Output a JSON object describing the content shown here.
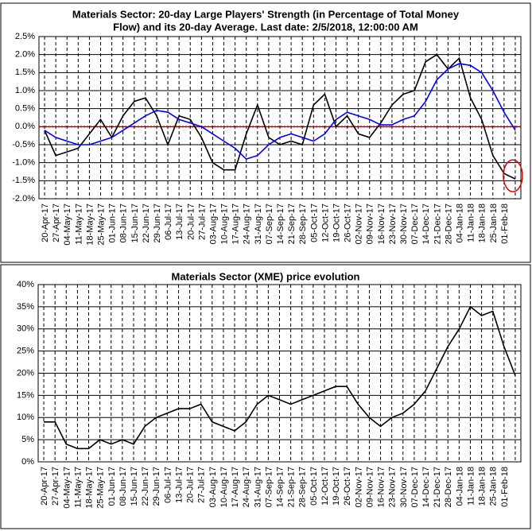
{
  "chart_data": [
    {
      "type": "line",
      "title": [
        "Materials Sector: 20-day Large Players' Strength (in Percentage of Total Money",
        "Flow) and its 20-day Average. Last date: 2/5/2018, 12:00:00 AM"
      ],
      "categories": [
        "20-Apr-17",
        "27-Apr-17",
        "04-May-17",
        "11-May-17",
        "18-May-17",
        "25-May-17",
        "01-Jun-17",
        "08-Jun-17",
        "15-Jun-17",
        "22-Jun-17",
        "29-Jun-17",
        "06-Jul-17",
        "13-Jul-17",
        "20-Jul-17",
        "27-Jul-17",
        "03-Aug-17",
        "10-Aug-17",
        "17-Aug-17",
        "24-Aug-17",
        "31-Aug-17",
        "07-Sep-17",
        "14-Sep-17",
        "21-Sep-17",
        "28-Sep-17",
        "05-Oct-17",
        "12-Oct-17",
        "19-Oct-17",
        "26-Oct-17",
        "02-Nov-17",
        "09-Nov-17",
        "16-Nov-17",
        "23-Nov-17",
        "30-Nov-17",
        "07-Dec-17",
        "14-Dec-17",
        "21-Dec-17",
        "28-Dec-17",
        "04-Jan-18",
        "11-Jan-18",
        "18-Jan-18",
        "25-Jan-18",
        "01-Feb-18",
        null
      ],
      "series": [
        {
          "color": "#000000",
          "values": [
            -0.1,
            -0.8,
            -0.7,
            -0.6,
            -0.2,
            0.2,
            -0.3,
            0.3,
            0.7,
            0.8,
            0.3,
            -0.5,
            0.3,
            0.2,
            -0.3,
            -1.0,
            -1.2,
            -1.2,
            -0.2,
            0.6,
            -0.3,
            -0.5,
            -0.4,
            -0.5,
            0.6,
            0.9,
            0.0,
            0.3,
            -0.2,
            -0.3,
            0.1,
            0.6,
            0.9,
            1.0,
            1.8,
            2.0,
            1.6,
            1.9,
            0.8,
            0.2,
            -0.8,
            -1.3,
            -1.45
          ]
        },
        {
          "color": "#0000ff",
          "values": [
            -0.1,
            -0.3,
            -0.4,
            -0.5,
            -0.5,
            -0.4,
            -0.3,
            -0.1,
            0.1,
            0.3,
            0.45,
            0.4,
            0.2,
            0.1,
            0.0,
            -0.2,
            -0.4,
            -0.6,
            -0.9,
            -0.8,
            -0.5,
            -0.3,
            -0.2,
            -0.3,
            -0.4,
            -0.2,
            0.2,
            0.4,
            0.3,
            0.2,
            0.05,
            0.05,
            0.2,
            0.3,
            0.7,
            1.3,
            1.6,
            1.75,
            1.7,
            1.5,
            1.0,
            0.4,
            -0.1
          ]
        }
      ],
      "ylim": [
        -2.0,
        2.5
      ],
      "yticks": [
        {
          "value": -2.0,
          "label": "-2.0%"
        },
        {
          "value": -1.5,
          "label": "-1.5%"
        },
        {
          "value": -1.0,
          "label": "-1.0%"
        },
        {
          "value": -0.5,
          "label": "-0.5%"
        },
        {
          "value": 0.0,
          "label": "0.0%"
        },
        {
          "value": 0.5,
          "label": "0.5%"
        },
        {
          "value": 1.0,
          "label": "1.0%"
        },
        {
          "value": 1.5,
          "label": "1.5%"
        },
        {
          "value": 2.0,
          "label": "2.0%"
        },
        {
          "value": 2.5,
          "label": "2.5%"
        }
      ],
      "grid": true
    },
    {
      "type": "line",
      "title": [
        "Materials Sector (XME) price evolution"
      ],
      "categories": [
        "20-Apr-17",
        "27-Apr-17",
        "04-May-17",
        "11-May-17",
        "18-May-17",
        "25-May-17",
        "01-Jun-17",
        "08-Jun-17",
        "15-Jun-17",
        "22-Jun-17",
        "29-Jun-17",
        "06-Jul-17",
        "13-Jul-17",
        "20-Jul-17",
        "27-Jul-17",
        "03-Aug-17",
        "10-Aug-17",
        "17-Aug-17",
        "24-Aug-17",
        "31-Aug-17",
        "07-Sep-17",
        "14-Sep-17",
        "21-Sep-17",
        "28-Sep-17",
        "05-Oct-17",
        "12-Oct-17",
        "19-Oct-17",
        "26-Oct-17",
        "02-Nov-17",
        "09-Nov-17",
        "16-Nov-17",
        "23-Nov-17",
        "30-Nov-17",
        "07-Dec-17",
        "14-Dec-17",
        "21-Dec-17",
        "28-Dec-17",
        "04-Jan-18",
        "11-Jan-18",
        "18-Jan-18",
        "25-Jan-18",
        "01-Feb-18",
        null
      ],
      "series": [
        {
          "color": "#000000",
          "values": [
            9,
            9,
            4,
            3,
            3,
            5,
            4,
            5,
            4,
            8,
            10,
            11,
            12,
            12,
            13,
            9,
            8,
            7,
            9,
            13,
            15,
            14,
            13,
            14,
            15,
            16,
            17,
            17,
            13,
            10,
            8,
            10,
            11,
            13,
            16,
            21,
            26,
            30,
            35,
            33,
            34,
            26,
            19.5
          ]
        }
      ],
      "ylim": [
        0,
        40
      ],
      "yticks": [
        {
          "value": 0,
          "label": "0%"
        },
        {
          "value": 5,
          "label": "5%"
        },
        {
          "value": 10,
          "label": "10%"
        },
        {
          "value": 15,
          "label": "15%"
        },
        {
          "value": 20,
          "label": "20%"
        },
        {
          "value": 25,
          "label": "25%"
        },
        {
          "value": 30,
          "label": "30%"
        },
        {
          "value": 35,
          "label": "35%"
        },
        {
          "value": 40,
          "label": "40%"
        }
      ],
      "grid": true
    }
  ]
}
